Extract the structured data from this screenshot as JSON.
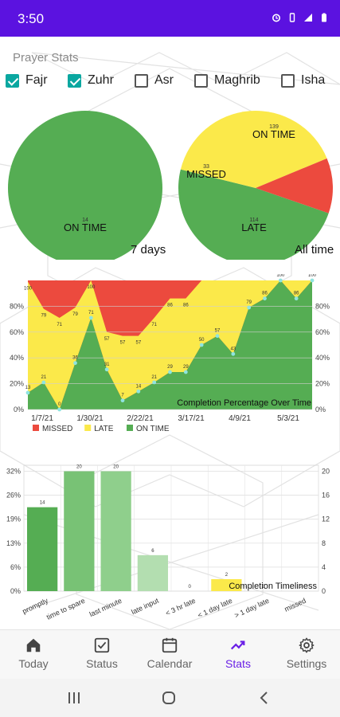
{
  "status_bar": {
    "time": "3:50",
    "icons": [
      "alarm-icon",
      "vibrate-icon",
      "signal-icon",
      "battery-icon"
    ]
  },
  "prayer_stats": {
    "title": "Prayer Stats",
    "checkboxes": [
      {
        "label": "Fajr",
        "checked": true
      },
      {
        "label": "Zuhr",
        "checked": true
      },
      {
        "label": "Asr",
        "checked": false
      },
      {
        "label": "Maghrib",
        "checked": false
      },
      {
        "label": "Isha",
        "checked": false
      }
    ]
  },
  "colors": {
    "on_time": "#55ad53",
    "late": "#fbe94a",
    "missed": "#ec4a3e",
    "accent": "#5b12e0",
    "nav_active": "#6a1fe6"
  },
  "chart_data": [
    {
      "type": "pie",
      "caption": "7 days",
      "slices": [
        {
          "label": "ON TIME",
          "value": 14
        }
      ]
    },
    {
      "type": "pie",
      "caption": "All time",
      "slices": [
        {
          "label": "ON TIME",
          "value": 139
        },
        {
          "label": "LATE",
          "value": 114
        },
        {
          "label": "MISSED",
          "value": 33
        }
      ]
    },
    {
      "type": "area",
      "title": "Completion Percentage Over Time",
      "x_ticks": [
        "1/7/21",
        "1/30/21",
        "2/22/21",
        "3/17/21",
        "4/9/21",
        "5/3/21"
      ],
      "y_ticks": [
        "0%",
        "20%",
        "40%",
        "60%",
        "80%"
      ],
      "ylim": [
        0,
        100
      ],
      "legend": [
        "MISSED",
        "LATE",
        "ON TIME"
      ],
      "legend_position": "bottom-left",
      "series": [
        {
          "name": "ON TIME",
          "values": [
            13,
            21,
            0,
            36,
            71,
            31,
            7,
            14,
            21,
            29,
            29,
            50,
            57,
            43,
            79,
            86,
            100,
            86,
            100
          ]
        },
        {
          "name": "LATE",
          "values": [
            86,
            57,
            71,
            43,
            29,
            29,
            50,
            43,
            50,
            57,
            57,
            50,
            43,
            57,
            21,
            14,
            0,
            14,
            0
          ]
        }
      ],
      "point_labels": [
        "13",
        "21",
        "0",
        "36",
        "71",
        "31",
        "7",
        "14",
        "21",
        "29",
        "29",
        "50",
        "57",
        "43",
        "79",
        "86",
        "100",
        "86",
        "100"
      ],
      "upper_labels": [
        "100",
        "79",
        "71",
        "79",
        "100",
        "57",
        "57",
        "57",
        "71",
        "86",
        "86"
      ]
    },
    {
      "type": "bar",
      "title": "Completion Timeliness",
      "categories": [
        "promptly",
        "time to spare",
        "last minute",
        "late input",
        "< 3 hr late",
        "< 1 day late",
        "> 1 day late",
        "missed"
      ],
      "values": [
        14,
        20,
        20,
        6,
        0,
        2,
        0,
        0
      ],
      "value_labels": [
        "14",
        "20",
        "20",
        "6",
        "0",
        "2",
        "0",
        "0"
      ],
      "bar_colors": [
        "#55ad53",
        "#78c275",
        "#8fcf8c",
        "#b3deb0",
        "#ffffff",
        "#fbe94a",
        "#ffffff",
        "#ec4a3e"
      ],
      "y_left_ticks": [
        "0%",
        "6%",
        "13%",
        "19%",
        "26%",
        "32%"
      ],
      "y_right_ticks": [
        "0",
        "4",
        "8",
        "12",
        "16",
        "20"
      ],
      "ylim": [
        0,
        21
      ]
    }
  ],
  "nav": {
    "items": [
      {
        "label": "Today",
        "icon": "home-icon"
      },
      {
        "label": "Status",
        "icon": "checkbox-icon"
      },
      {
        "label": "Calendar",
        "icon": "calendar-icon"
      },
      {
        "label": "Stats",
        "icon": "trending-icon"
      },
      {
        "label": "Settings",
        "icon": "gear-icon"
      }
    ],
    "active_index": 3
  },
  "system_nav": {
    "items": [
      "recents-icon",
      "home-circle-icon",
      "back-icon"
    ]
  }
}
